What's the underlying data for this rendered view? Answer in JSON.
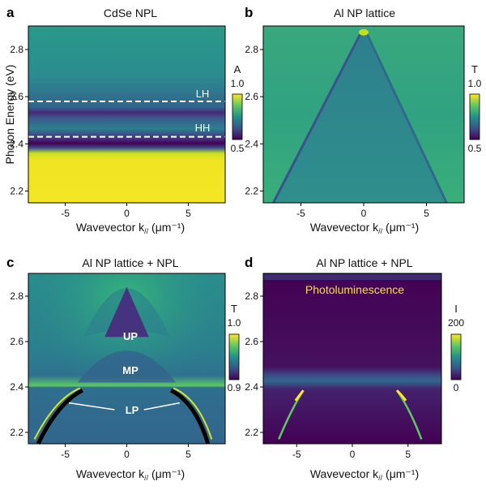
{
  "chart_data": [
    {
      "type": "heatmap",
      "panel_label": "a",
      "title": "CdSe NPL",
      "xlabel": "Wavevector k// (μm⁻¹)",
      "ylabel": "Photon Energy  (eV)",
      "xlim": [
        -8,
        8
      ],
      "ylim": [
        2.15,
        2.9
      ],
      "xticks": [
        -5,
        0,
        5
      ],
      "yticks": [
        2.2,
        2.4,
        2.6,
        2.8
      ],
      "colorbar": {
        "label": "A",
        "min": 0.5,
        "max": 1.0,
        "ticks": [
          "1.0",
          "0.5"
        ]
      },
      "features": {
        "LH_energy_eV": 2.58,
        "HH_energy_eV": 2.43
      },
      "annotations": [
        "LH",
        "HH"
      ]
    },
    {
      "type": "heatmap",
      "panel_label": "b",
      "title": "Al NP lattice",
      "xlabel": "Wavevector k// (μm⁻¹)",
      "ylabel": "",
      "xlim": [
        -8,
        8
      ],
      "ylim": [
        2.15,
        2.9
      ],
      "xticks": [
        -5,
        0,
        5
      ],
      "yticks": [
        2.2,
        2.4,
        2.6,
        2.8
      ],
      "colorbar": {
        "label": "T",
        "min": 0.5,
        "max": 1.0,
        "ticks": [
          "1.0",
          "0.5"
        ]
      },
      "features": {
        "mode_apex_eV": 2.88,
        "mode_apex_k": 0,
        "mode_endpoints": [
          [
            -7.2,
            2.15
          ],
          [
            6.6,
            2.15
          ]
        ]
      }
    },
    {
      "type": "heatmap",
      "panel_label": "c",
      "title": "Al NP lattice + NPL",
      "xlabel": "Wavevector k// (μm⁻¹)",
      "ylabel": "",
      "xlim": [
        -8,
        8
      ],
      "ylim": [
        2.15,
        2.9
      ],
      "xticks": [
        -5,
        0,
        5
      ],
      "yticks": [
        2.2,
        2.4,
        2.6,
        2.8
      ],
      "colorbar": {
        "label": "T",
        "min": 0.9,
        "max": 1.0,
        "ticks": [
          "1.0",
          "0.9"
        ]
      },
      "annotations": [
        "UP",
        "MP",
        "LP"
      ]
    },
    {
      "type": "heatmap",
      "panel_label": "d",
      "title": "Al NP lattice + NPL",
      "xlabel": "Wavevector k// (μm⁻¹)",
      "ylabel": "",
      "xlim": [
        -8,
        8
      ],
      "ylim": [
        2.15,
        2.9
      ],
      "xticks": [
        -5,
        0,
        5
      ],
      "yticks": [
        2.2,
        2.4,
        2.6,
        2.8
      ],
      "colorbar": {
        "label": "I",
        "min": 0,
        "max": 200,
        "ticks": [
          "200",
          "0"
        ]
      },
      "annotations": [
        "Photoluminescence"
      ]
    }
  ],
  "colors": {
    "viridis_low": "#440154",
    "viridis_mid": "#21918c",
    "viridis_high": "#fde725",
    "dashed_line": "#ffffff",
    "pl_label": "#f2e13a"
  }
}
